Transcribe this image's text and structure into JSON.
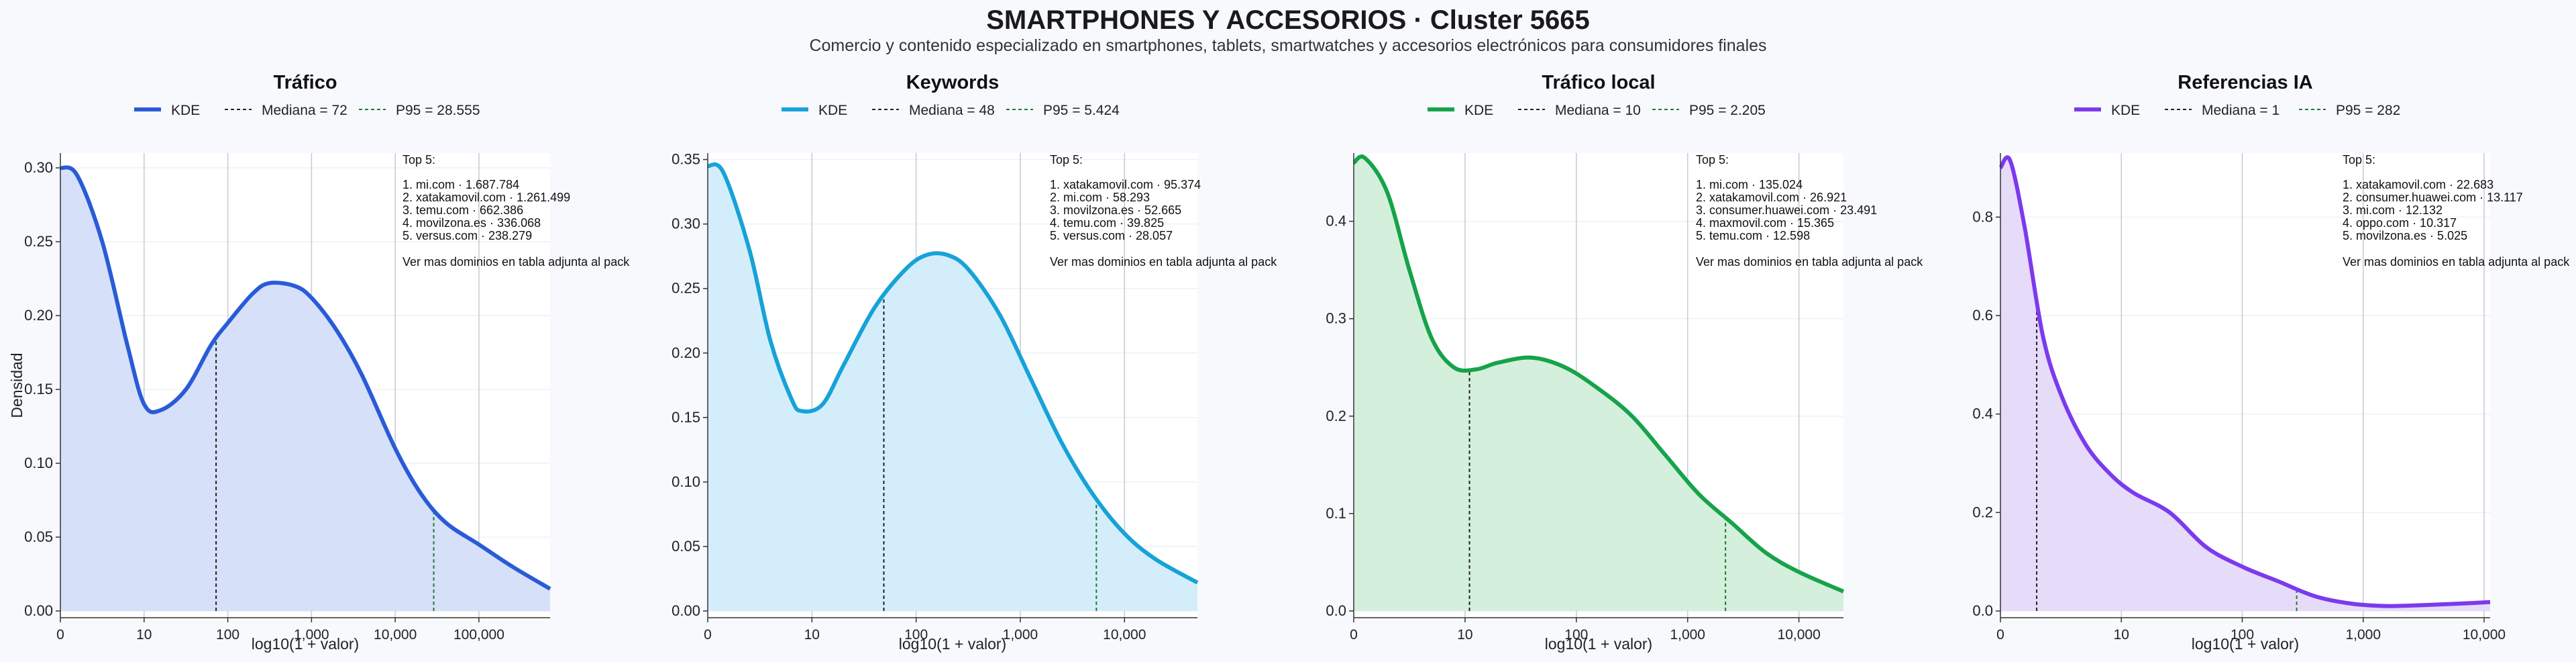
{
  "title": "SMARTPHONES Y ACCESORIOS · Cluster 5665",
  "subtitle": "Comercio y contenido especializado en smartphones, tablets, smartwatches y accesorios electrónicos para consumidores finales",
  "chart_data": [
    {
      "type": "area",
      "title": "Tráfico",
      "xlabel": "log10(1 + valor)",
      "ylabel": "Densidad",
      "color": "#2a5bd7",
      "fill": "#d6e0f8",
      "xlim": [
        0,
        5.85
      ],
      "ylim": [
        0,
        0.31
      ],
      "xticks": [
        "0",
        "10",
        "100",
        "1,000",
        "10,000",
        "100,000"
      ],
      "yticks": [
        "0.00",
        "0.05",
        "0.10",
        "0.15",
        "0.20",
        "0.25",
        "0.30"
      ],
      "ytick_values": [
        0,
        0.05,
        0.1,
        0.15,
        0.2,
        0.25,
        0.3
      ],
      "legend": [
        "KDE",
        "Mediana = 72",
        "P95 = 28.555"
      ],
      "median_x": 1.86,
      "p95_x": 4.46,
      "kde_x": [
        0,
        0.2,
        0.5,
        0.8,
        1.0,
        1.2,
        1.5,
        1.8,
        2.0,
        2.3,
        2.5,
        2.8,
        3.0,
        3.3,
        3.6,
        4.0,
        4.3,
        4.6,
        5.0,
        5.4,
        5.85
      ],
      "kde_y": [
        0.3,
        0.295,
        0.25,
        0.18,
        0.14,
        0.136,
        0.15,
        0.18,
        0.195,
        0.215,
        0.222,
        0.22,
        0.212,
        0.19,
        0.16,
        0.11,
        0.08,
        0.06,
        0.045,
        0.03,
        0.015
      ],
      "top5_heading": "Top 5:",
      "top5": [
        "1. mi.com · 1.687.784",
        "2. xatakamovil.com · 1.261.499",
        "3. temu.com · 662.386",
        "4. movilzona.es · 336.068",
        "5. versus.com · 238.279"
      ],
      "footnote": "Ver mas dominios en tabla adjunta al pack"
    },
    {
      "type": "area",
      "title": "Keywords",
      "xlabel": "log10(1 + valor)",
      "ylabel": "",
      "color": "#17a2d8",
      "fill": "#d3eefa",
      "xlim": [
        0,
        4.7
      ],
      "ylim": [
        0,
        0.355
      ],
      "xticks": [
        "0",
        "10",
        "100",
        "1,000",
        "10,000"
      ],
      "yticks": [
        "0.00",
        "0.05",
        "0.10",
        "0.15",
        "0.20",
        "0.25",
        "0.30",
        "0.35"
      ],
      "ytick_values": [
        0,
        0.05,
        0.1,
        0.15,
        0.2,
        0.25,
        0.3,
        0.35
      ],
      "legend": [
        "KDE",
        "Mediana = 48",
        "P95 = 5.424"
      ],
      "median_x": 1.69,
      "p95_x": 3.73,
      "kde_x": [
        0,
        0.15,
        0.4,
        0.6,
        0.8,
        0.9,
        1.1,
        1.3,
        1.6,
        1.9,
        2.1,
        2.3,
        2.5,
        2.8,
        3.1,
        3.4,
        3.7,
        4.0,
        4.3,
        4.7
      ],
      "kde_y": [
        0.345,
        0.34,
        0.28,
        0.21,
        0.165,
        0.155,
        0.16,
        0.19,
        0.235,
        0.265,
        0.276,
        0.276,
        0.265,
        0.23,
        0.18,
        0.13,
        0.09,
        0.06,
        0.04,
        0.022
      ],
      "top5_heading": "Top 5:",
      "top5": [
        "1. xatakamovil.com · 95.374",
        "2. mi.com · 58.293",
        "3. movilzona.es · 52.665",
        "4. temu.com · 39.825",
        "5. versus.com · 28.057"
      ],
      "footnote": "Ver mas dominios en tabla adjunta al pack"
    },
    {
      "type": "area",
      "title": "Tráfico local",
      "xlabel": "log10(1 + valor)",
      "ylabel": "",
      "color": "#16a34a",
      "fill": "#d4efdc",
      "xlim": [
        0,
        4.4
      ],
      "ylim": [
        0,
        0.47
      ],
      "xticks": [
        "0",
        "10",
        "100",
        "1,000",
        "10,000"
      ],
      "yticks": [
        "0.0",
        "0.1",
        "0.2",
        "0.3",
        "0.4"
      ],
      "ytick_values": [
        0,
        0.1,
        0.2,
        0.3,
        0.4
      ],
      "legend": [
        "KDE",
        "Mediana = 10",
        "P95 = 2.205"
      ],
      "median_x": 1.04,
      "p95_x": 3.34,
      "kde_x": [
        0,
        0.1,
        0.3,
        0.5,
        0.7,
        0.9,
        1.1,
        1.3,
        1.6,
        1.9,
        2.2,
        2.5,
        2.8,
        3.1,
        3.4,
        3.7,
        4.0,
        4.4
      ],
      "kde_y": [
        0.46,
        0.465,
        0.43,
        0.35,
        0.28,
        0.25,
        0.248,
        0.255,
        0.26,
        0.25,
        0.228,
        0.2,
        0.16,
        0.12,
        0.09,
        0.06,
        0.04,
        0.02
      ],
      "top5_heading": "Top 5:",
      "top5": [
        "1. mi.com · 135.024",
        "2. xatakamovil.com · 26.921",
        "3. consumer.huawei.com · 23.491",
        "4. maxmovil.com · 15.365",
        "5. temu.com · 12.598"
      ],
      "footnote": "Ver mas dominios en tabla adjunta al pack"
    },
    {
      "type": "area",
      "title": "Referencias IA",
      "xlabel": "log10(1 + valor)",
      "ylabel": "",
      "color": "#7c3aed",
      "fill": "#e6dbf9",
      "xlim": [
        0,
        4.05
      ],
      "ylim": [
        0,
        0.93
      ],
      "xticks": [
        "0",
        "10",
        "100",
        "1,000",
        "10,000"
      ],
      "yticks": [
        "0.0",
        "0.2",
        "0.4",
        "0.6",
        "0.8"
      ],
      "ytick_values": [
        0,
        0.2,
        0.4,
        0.6,
        0.8
      ],
      "legend": [
        "KDE",
        "Mediana = 1",
        "P95 = 282"
      ],
      "median_x": 0.3,
      "p95_x": 2.45,
      "kde_x": [
        0,
        0.08,
        0.2,
        0.35,
        0.5,
        0.7,
        0.9,
        1.1,
        1.4,
        1.7,
        2.0,
        2.3,
        2.6,
        2.9,
        3.2,
        3.5,
        3.8,
        4.05
      ],
      "kde_y": [
        0.9,
        0.915,
        0.78,
        0.56,
        0.44,
        0.34,
        0.28,
        0.24,
        0.2,
        0.13,
        0.09,
        0.06,
        0.03,
        0.015,
        0.01,
        0.012,
        0.015,
        0.018
      ],
      "top5_heading": "Top 5:",
      "top5": [
        "1. xatakamovil.com · 22.683",
        "2. consumer.huawei.com · 13.117",
        "3. mi.com · 12.132",
        "4. oppo.com · 10.317",
        "5. movilzona.es · 5.025"
      ],
      "footnote": "Ver mas dominios en tabla adjunta al pack"
    }
  ]
}
